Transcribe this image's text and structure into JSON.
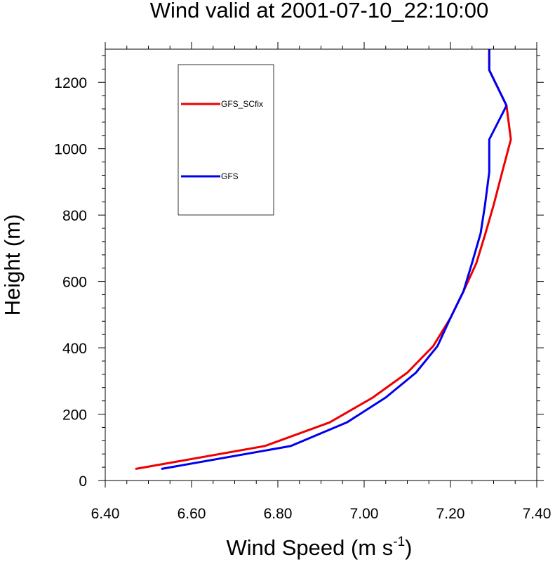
{
  "chart_data": {
    "type": "line",
    "title": "Wind valid at 2001-07-10_22:10:00",
    "xlabel": "Wind Speed (m s",
    "xlabel_sup": "-1",
    "xlabel_suffix": ")",
    "ylabel": "Height (m)",
    "xlim": [
      6.4,
      7.4
    ],
    "ylim": [
      0,
      1300
    ],
    "x_ticks": [
      "6.40",
      "6.60",
      "6.80",
      "7.00",
      "7.20",
      "7.40"
    ],
    "y_ticks": [
      "0",
      "200",
      "400",
      "600",
      "800",
      "1000",
      "1200"
    ],
    "legend": {
      "placement": "top-left"
    },
    "series": [
      {
        "name": "GFS_SCfix",
        "color": "#ee0000",
        "points": [
          [
            6.47,
            35
          ],
          [
            6.77,
            104
          ],
          [
            6.92,
            175
          ],
          [
            7.02,
            250
          ],
          [
            7.1,
            325
          ],
          [
            7.16,
            405
          ],
          [
            7.2,
            490
          ],
          [
            7.23,
            570
          ],
          [
            7.26,
            655
          ],
          [
            7.28,
            740
          ],
          [
            7.3,
            830
          ],
          [
            7.32,
            930
          ],
          [
            7.34,
            1028
          ],
          [
            7.33,
            1130
          ],
          [
            7.29,
            1237
          ],
          [
            7.29,
            1300
          ]
        ]
      },
      {
        "name": "GFS",
        "color": "#0000ee",
        "points": [
          [
            6.53,
            35
          ],
          [
            6.83,
            104
          ],
          [
            6.96,
            175
          ],
          [
            7.05,
            250
          ],
          [
            7.12,
            325
          ],
          [
            7.17,
            405
          ],
          [
            7.2,
            490
          ],
          [
            7.23,
            570
          ],
          [
            7.25,
            655
          ],
          [
            7.27,
            745
          ],
          [
            7.28,
            830
          ],
          [
            7.29,
            930
          ],
          [
            7.29,
            1028
          ],
          [
            7.33,
            1130
          ],
          [
            7.29,
            1237
          ],
          [
            7.29,
            1300
          ]
        ]
      }
    ]
  }
}
